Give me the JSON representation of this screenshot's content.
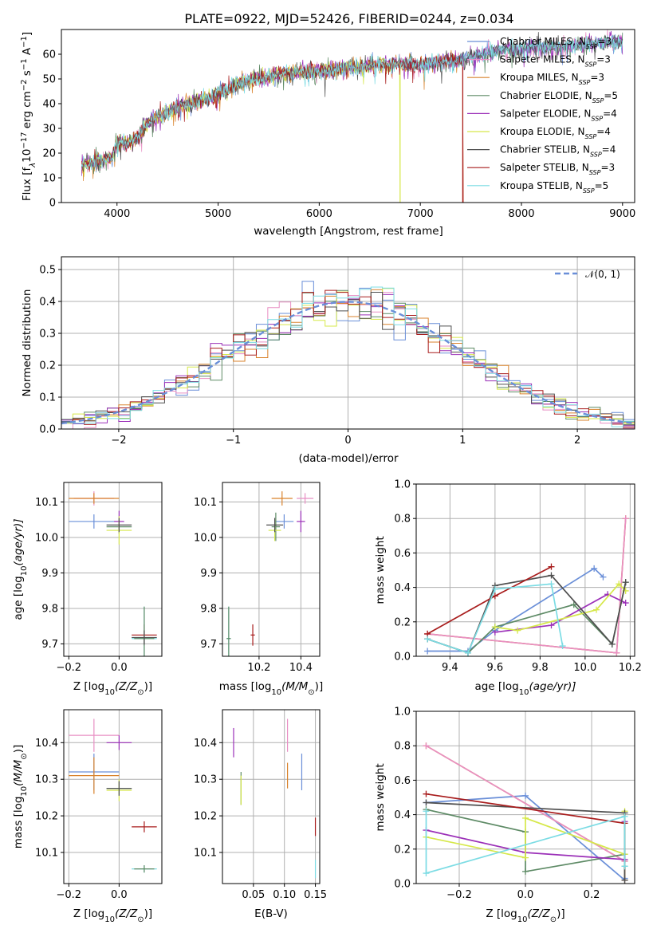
{
  "figure_title": "PLATE=0922, MJD=52426, FIBERID=0244, z=0.034",
  "colors": {
    "Chabrier MILES": "#6a8fd8",
    "Salpeter MILES": "#e88fc4",
    "Kroupa MILES": "#d9822b",
    "Chabrier ELODIE": "#5d8a65",
    "Salpeter ELODIE": "#9b30b8",
    "Kroupa ELODIE": "#d6e84a",
    "Chabrier STELIB": "#4f4f4f",
    "Salpeter STELIB": "#a81c1c",
    "Kroupa STELIB": "#7cdce4"
  },
  "legend": [
    {
      "model": "Chabrier MILES",
      "label": "Chabrier MILES, N",
      "nssp": "3"
    },
    {
      "model": "Salpeter MILES",
      "label": "Salpeter MILES, N",
      "nssp": "3"
    },
    {
      "model": "Kroupa MILES",
      "label": "Kroupa MILES, N",
      "nssp": "3"
    },
    {
      "model": "Chabrier ELODIE",
      "label": "Chabrier ELODIE, N",
      "nssp": "5"
    },
    {
      "model": "Salpeter ELODIE",
      "label": "Salpeter ELODIE, N",
      "nssp": "4"
    },
    {
      "model": "Kroupa ELODIE",
      "label": "Kroupa ELODIE, N",
      "nssp": "4"
    },
    {
      "model": "Chabrier STELIB",
      "label": "Chabrier STELIB, N",
      "nssp": "4"
    },
    {
      "model": "Salpeter STELIB",
      "label": "Salpeter STELIB, N",
      "nssp": "3"
    },
    {
      "model": "Kroupa STELIB",
      "label": "Kroupa STELIB, N",
      "nssp": "5"
    }
  ],
  "nssp_subscript": "SSP",
  "chart_data": [
    {
      "id": "spectrum",
      "type": "line",
      "xlabel": "wavelength [Angstrom, rest frame]",
      "ylabel": "Flux [f",
      "ylabel_rest": "10",
      "ylabel_exp": "−17",
      "ylabel_units": " erg cm",
      "ylabel_units_exp": "−2",
      "ylabel_units2": " s",
      "ylabel_units2_exp": "−1",
      "ylabel_units3": " A",
      "ylabel_units3_exp": "−1",
      "ylabel_close": "]",
      "xlim": [
        3450,
        9120
      ],
      "ylim": [
        0,
        70
      ],
      "xticks": [
        4000,
        5000,
        6000,
        7000,
        8000,
        9000
      ],
      "yticks": [
        0,
        10,
        20,
        30,
        40,
        50,
        60
      ],
      "spectrum_range": [
        3650,
        9000
      ],
      "continuum": [
        [
          3650,
          15
        ],
        [
          3850,
          17
        ],
        [
          3950,
          18
        ],
        [
          4000,
          25
        ],
        [
          4100,
          24
        ],
        [
          4200,
          26
        ],
        [
          4300,
          32
        ],
        [
          4500,
          37
        ],
        [
          4700,
          40
        ],
        [
          4900,
          42
        ],
        [
          5000,
          44
        ],
        [
          5200,
          48
        ],
        [
          5400,
          50
        ],
        [
          5600,
          52
        ],
        [
          5800,
          53
        ],
        [
          6000,
          53
        ],
        [
          6200,
          54
        ],
        [
          6400,
          55
        ],
        [
          6600,
          56
        ],
        [
          6800,
          56
        ],
        [
          7000,
          56
        ],
        [
          7200,
          57
        ],
        [
          7400,
          58
        ],
        [
          7600,
          60
        ],
        [
          7800,
          62
        ],
        [
          8000,
          62
        ],
        [
          8200,
          63
        ],
        [
          8400,
          63
        ],
        [
          8600,
          64
        ],
        [
          8800,
          65
        ],
        [
          9000,
          65
        ]
      ],
      "dropouts": [
        {
          "model": "Kroupa ELODIE",
          "from": 3900,
          "to": 6800
        },
        {
          "model": "Kroupa MILES",
          "from": 3650,
          "to": 7420
        },
        {
          "model": "Salpeter STELIB",
          "from": 3650,
          "to": 7420
        }
      ]
    },
    {
      "id": "residuals",
      "type": "histogram",
      "xlabel": "(data-model)/error",
      "ylabel": "Normed distribution",
      "xlim": [
        -2.5,
        2.5
      ],
      "ylim": [
        0,
        0.54
      ],
      "xticks": [
        -2,
        -1,
        0,
        1,
        2
      ],
      "yticks": [
        0.0,
        0.1,
        0.2,
        0.3,
        0.4,
        0.5
      ],
      "reference_label": "𝒩(0, 1)",
      "bin_width": 0.1
    },
    {
      "id": "age-vs-Z",
      "type": "scatter",
      "xlabel": "Z [log",
      "xlabel_sub": "10",
      "xlabel_rest": "(Z/Z",
      "xlabel_sun": "⊙",
      "xlabel_close": ")]",
      "ylabel": "age  [log",
      "ylabel_sub": "10",
      "ylabel_rest": "(age/yr)]",
      "xlim": [
        -0.22,
        0.17
      ],
      "ylim": [
        9.665,
        10.155
      ],
      "xticks": [
        -0.2,
        0.0
      ],
      "yticks": [
        9.7,
        9.8,
        9.9,
        10.0,
        10.1
      ],
      "points": [
        {
          "model": "Chabrier MILES",
          "x": -0.1,
          "y": 10.045,
          "xerr": 0.1,
          "yerr": 0.02
        },
        {
          "model": "Salpeter MILES",
          "x": -0.1,
          "y": 10.11,
          "xerr": 0.08,
          "yerr": 0.02
        },
        {
          "model": "Kroupa MILES",
          "x": -0.1,
          "y": 10.11,
          "xerr": 0.1,
          "yerr": 0.015
        },
        {
          "model": "Chabrier ELODIE",
          "x": 0.0,
          "y": 10.03,
          "xerr": 0.05,
          "yerr": 0.02
        },
        {
          "model": "Salpeter ELODIE",
          "x": 0.0,
          "y": 10.045,
          "xerr": 0.02,
          "yerr": 0.03
        },
        {
          "model": "Kroupa ELODIE",
          "x": 0.0,
          "y": 10.02,
          "xerr": 0.05,
          "yerr": 0.04
        },
        {
          "model": "Chabrier STELIB",
          "x": 0.0,
          "y": 10.035,
          "xerr": 0.05,
          "yerr": 0.02
        },
        {
          "model": "Salpeter STELIB",
          "x": 0.1,
          "y": 9.725,
          "xerr": 0.05,
          "yerr": 0.03
        },
        {
          "model": "Kroupa STELIB",
          "x": 0.1,
          "y": 9.715,
          "xerr": 0.05,
          "yerr": 0.09
        },
        {
          "model": "Chabrier ELODIE",
          "x": 0.1,
          "y": 9.715,
          "xerr": 0.04,
          "yerr": 0.09
        },
        {
          "model": "Chabrier STELIB",
          "x": 0.1,
          "y": 9.718,
          "xerr": 0.05,
          "yerr": 0.02
        }
      ]
    },
    {
      "id": "age-vs-mass",
      "type": "scatter",
      "xlabel": "mass [log",
      "xlabel_sub": "10",
      "xlabel_rest": "(M/M",
      "xlabel_sun": "⊙",
      "xlabel_close": ")]",
      "xlim": [
        10.025,
        10.49
      ],
      "ylim": [
        9.665,
        10.155
      ],
      "xticks": [
        10.2,
        10.4
      ],
      "yticks": [
        9.7,
        9.8,
        9.9,
        10.0,
        10.1
      ],
      "points": [
        {
          "model": "Chabrier MILES",
          "x": 10.32,
          "y": 10.045,
          "xerr": 0.045,
          "yerr": 0.02
        },
        {
          "model": "Salpeter MILES",
          "x": 10.42,
          "y": 10.11,
          "xerr": 0.04,
          "yerr": 0.015
        },
        {
          "model": "Kroupa MILES",
          "x": 10.31,
          "y": 10.11,
          "xerr": 0.05,
          "yerr": 0.02
        },
        {
          "model": "Chabrier ELODIE",
          "x": 10.28,
          "y": 10.03,
          "xerr": 0.02,
          "yerr": 0.04
        },
        {
          "model": "Salpeter ELODIE",
          "x": 10.4,
          "y": 10.045,
          "xerr": 0.02,
          "yerr": 0.03
        },
        {
          "model": "Kroupa ELODIE",
          "x": 10.275,
          "y": 10.02,
          "xerr": 0.03,
          "yerr": 0.03
        },
        {
          "model": "Chabrier STELIB",
          "x": 10.275,
          "y": 10.035,
          "xerr": 0.04,
          "yerr": 0.02
        },
        {
          "model": "Salpeter STELIB",
          "x": 10.17,
          "y": 9.725,
          "xerr": 0.01,
          "yerr": 0.03
        },
        {
          "model": "Kroupa STELIB",
          "x": 10.055,
          "y": 9.715,
          "xerr": 0.01,
          "yerr": 0.09
        },
        {
          "model": "Chabrier ELODIE",
          "x": 10.055,
          "y": 9.715,
          "xerr": 0.01,
          "yerr": 0.09
        }
      ]
    },
    {
      "id": "weight-vs-age",
      "type": "line",
      "xlabel": "age  [log",
      "xlabel_sub": "10",
      "xlabel_rest": "(age/yr)]",
      "ylabel": "mass weight",
      "xlim": [
        9.25,
        10.22
      ],
      "ylim": [
        0,
        1
      ],
      "xticks": [
        9.4,
        9.6,
        9.8,
        10.0,
        10.2
      ],
      "yticks": [
        0.0,
        0.2,
        0.4,
        0.6,
        0.8,
        1.0
      ],
      "series": [
        {
          "model": "Chabrier MILES",
          "x": [
            9.3,
            9.48,
            9.6,
            10.04,
            10.08
          ],
          "y": [
            0.03,
            0.03,
            0.15,
            0.51,
            0.46
          ]
        },
        {
          "model": "Kroupa MILES",
          "x": [
            9.3,
            10.14,
            10.18
          ],
          "y": [
            0.13,
            0.02,
            0.8
          ]
        },
        {
          "model": "Salpeter MILES",
          "x": [
            9.3,
            10.14,
            10.18
          ],
          "y": [
            0.13,
            0.02,
            0.8
          ]
        },
        {
          "model": "Chabrier ELODIE",
          "x": [
            9.3,
            9.48,
            9.6,
            9.95,
            10.12,
            10.18
          ],
          "y": [
            0.1,
            0.02,
            0.17,
            0.3,
            0.07,
            0.43
          ]
        },
        {
          "model": "Salpeter ELODIE",
          "x": [
            9.6,
            9.85,
            10.1,
            10.18
          ],
          "y": [
            0.14,
            0.18,
            0.36,
            0.31
          ]
        },
        {
          "model": "Kroupa ELODIE",
          "x": [
            9.6,
            9.7,
            10.05,
            10.15,
            10.18
          ],
          "y": [
            0.17,
            0.15,
            0.27,
            0.42,
            0.38
          ]
        },
        {
          "model": "Chabrier STELIB",
          "x": [
            9.3,
            9.48,
            9.6,
            9.85,
            10.12,
            10.18
          ],
          "y": [
            0.1,
            0.02,
            0.41,
            0.47,
            0.07,
            0.43
          ]
        },
        {
          "model": "Salpeter STELIB",
          "x": [
            9.3,
            9.6,
            9.85
          ],
          "y": [
            0.13,
            0.35,
            0.52
          ]
        },
        {
          "model": "Kroupa STELIB",
          "x": [
            9.3,
            9.48,
            9.6,
            9.85,
            9.9
          ],
          "y": [
            0.1,
            0.02,
            0.39,
            0.42,
            0.06
          ]
        }
      ]
    },
    {
      "id": "mass-vs-Z",
      "type": "scatter",
      "xlabel": "Z [log",
      "xlabel_sub": "10",
      "xlabel_rest": "(Z/Z",
      "xlabel_sun": "⊙",
      "xlabel_close": ")]",
      "ylabel": "mass [log",
      "ylabel_sub": "10",
      "ylabel_rest": "(M/M",
      "ylabel_sun": "⊙",
      "ylabel_close": ")]",
      "xlim": [
        -0.22,
        0.17
      ],
      "ylim": [
        10.015,
        10.49
      ],
      "xticks": [
        -0.2,
        0.0
      ],
      "yticks": [
        10.1,
        10.2,
        10.3,
        10.4
      ],
      "points": [
        {
          "model": "Chabrier MILES",
          "x": -0.1,
          "y": 10.32,
          "xerr": 0.1,
          "yerr": 0.05
        },
        {
          "model": "Salpeter MILES",
          "x": -0.1,
          "y": 10.42,
          "xerr": 0.1,
          "yerr": 0.045
        },
        {
          "model": "Kroupa MILES",
          "x": -0.1,
          "y": 10.31,
          "xerr": 0.1,
          "yerr": 0.05
        },
        {
          "model": "Chabrier ELODIE",
          "x": 0.0,
          "y": 10.275,
          "xerr": 0.05,
          "yerr": 0.02
        },
        {
          "model": "Salpeter ELODIE",
          "x": 0.0,
          "y": 10.4,
          "xerr": 0.05,
          "yerr": 0.02
        },
        {
          "model": "Kroupa ELODIE",
          "x": 0.0,
          "y": 10.27,
          "xerr": 0.05,
          "yerr": 0.03
        },
        {
          "model": "Chabrier STELIB",
          "x": 0.0,
          "y": 10.275,
          "xerr": 0.05,
          "yerr": 0.02
        },
        {
          "model": "Salpeter STELIB",
          "x": 0.1,
          "y": 10.17,
          "xerr": 0.05,
          "yerr": 0.015
        },
        {
          "model": "Kroupa STELIB",
          "x": 0.1,
          "y": 10.055,
          "xerr": 0.05,
          "yerr": 0.01
        },
        {
          "model": "Chabrier ELODIE",
          "x": 0.1,
          "y": 10.055,
          "xerr": 0.04,
          "yerr": 0.01
        }
      ]
    },
    {
      "id": "mass-vs-ebv",
      "type": "scatter",
      "xlabel": "E(B-V)",
      "xlim": [
        0.0,
        0.157
      ],
      "ylim": [
        10.015,
        10.49
      ],
      "xticks": [
        0.05,
        0.1,
        0.15
      ],
      "yticks": [
        10.1,
        10.2,
        10.3,
        10.4
      ],
      "points": [
        {
          "model": "Chabrier MILES",
          "x": 0.128,
          "y": 10.32,
          "xerr": 0.0,
          "yerr": 0.05
        },
        {
          "model": "Salpeter MILES",
          "x": 0.105,
          "y": 10.42,
          "xerr": 0.0,
          "yerr": 0.045
        },
        {
          "model": "Kroupa MILES",
          "x": 0.105,
          "y": 10.31,
          "xerr": 0.0,
          "yerr": 0.035
        },
        {
          "model": "Chabrier ELODIE",
          "x": 0.03,
          "y": 10.275,
          "xerr": 0.0,
          "yerr": 0.045
        },
        {
          "model": "Salpeter ELODIE",
          "x": 0.018,
          "y": 10.4,
          "xerr": 0.0,
          "yerr": 0.04
        },
        {
          "model": "Kroupa ELODIE",
          "x": 0.03,
          "y": 10.27,
          "xerr": 0.0,
          "yerr": 0.04
        },
        {
          "model": "Salpeter STELIB",
          "x": 0.15,
          "y": 10.17,
          "xerr": 0.0,
          "yerr": 0.025
        },
        {
          "model": "Kroupa STELIB",
          "x": 0.15,
          "y": 10.055,
          "xerr": 0.0,
          "yerr": 0.025
        }
      ]
    },
    {
      "id": "weight-vs-Z",
      "type": "line",
      "xlabel": "Z [log",
      "xlabel_sub": "10",
      "xlabel_rest": "(Z/Z",
      "xlabel_sun": "⊙",
      "xlabel_close": ")]",
      "ylabel": "mass weight",
      "xlim": [
        -0.33,
        0.33
      ],
      "ylim": [
        0,
        1
      ],
      "xticks": [
        -0.2,
        0.0,
        0.2
      ],
      "yticks": [
        0.0,
        0.2,
        0.4,
        0.6,
        0.8,
        1.0
      ],
      "series": [
        {
          "model": "Chabrier MILES",
          "x": [
            -0.3,
            0.0,
            0.3,
            0.3
          ],
          "y": [
            0.47,
            0.51,
            0.02,
            0.03
          ]
        },
        {
          "model": "Kroupa MILES",
          "x": [
            -0.3,
            0.3,
            0.3
          ],
          "y": [
            0.8,
            0.13,
            0.02
          ]
        },
        {
          "model": "Salpeter MILES",
          "x": [
            -0.3,
            0.3
          ],
          "y": [
            0.8,
            0.13
          ]
        },
        {
          "model": "Chabrier ELODIE",
          "x": [
            -0.3,
            0.0,
            0.0,
            0.3,
            0.3
          ],
          "y": [
            0.43,
            0.3,
            0.07,
            0.17,
            0.1
          ]
        },
        {
          "model": "Salpeter ELODIE",
          "x": [
            -0.3,
            0.0,
            0.3,
            0.3
          ],
          "y": [
            0.31,
            0.18,
            0.14,
            0.36
          ]
        },
        {
          "model": "Kroupa ELODIE",
          "x": [
            -0.3,
            0.0,
            0.0,
            0.3,
            0.3
          ],
          "y": [
            0.27,
            0.15,
            0.38,
            0.17,
            0.42
          ]
        },
        {
          "model": "Chabrier STELIB",
          "x": [
            -0.3,
            0.3,
            0.3
          ],
          "y": [
            0.47,
            0.41,
            0.02
          ]
        },
        {
          "model": "Salpeter STELIB",
          "x": [
            -0.3,
            0.3
          ],
          "y": [
            0.52,
            0.35
          ]
        },
        {
          "model": "Kroupa STELIB",
          "x": [
            -0.3,
            -0.3,
            0.3,
            0.3
          ],
          "y": [
            0.42,
            0.06,
            0.39,
            0.1
          ]
        }
      ]
    }
  ]
}
